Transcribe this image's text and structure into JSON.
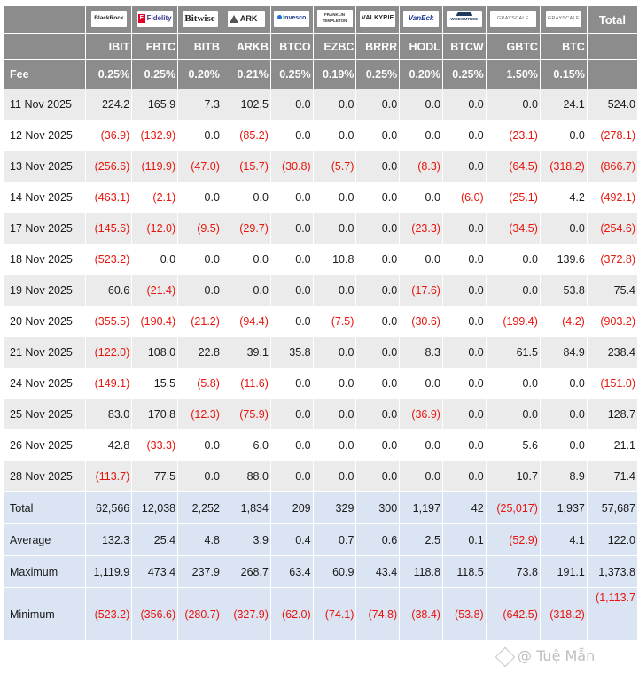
{
  "header": {
    "logos": [
      {
        "name": "blackrock-logo",
        "text": "BlackRock"
      },
      {
        "name": "fidelity-logo",
        "mark": "F",
        "text": "Fidelity"
      },
      {
        "name": "bitwise-logo",
        "text": "Bitwise"
      },
      {
        "name": "ark-logo",
        "text": "ARK"
      },
      {
        "name": "invesco-logo",
        "text": "Invesco"
      },
      {
        "name": "franklin-templeton-logo",
        "text": "FRANKLIN TEMPLETON"
      },
      {
        "name": "valkyrie-logo",
        "text": "VALKYRIE"
      },
      {
        "name": "vaneck-logo",
        "text": "VanEck"
      },
      {
        "name": "wisdomtree-logo",
        "text": "WISDOMTREE"
      },
      {
        "name": "grayscale-logo-gbtc",
        "text": "GRAYSCALE"
      },
      {
        "name": "grayscale-logo-btc",
        "text": "GRAYSCALE"
      }
    ],
    "total_label": "Total",
    "tickers": [
      "IBIT",
      "FBTC",
      "BITB",
      "ARKB",
      "BTCO",
      "EZBC",
      "BRRR",
      "HODL",
      "BTCW",
      "GBTC",
      "BTC"
    ],
    "fee_label": "Fee",
    "fees": [
      "0.25%",
      "0.25%",
      "0.20%",
      "0.21%",
      "0.25%",
      "0.19%",
      "0.25%",
      "0.20%",
      "0.25%",
      "1.50%",
      "0.15%"
    ]
  },
  "rows": [
    {
      "date": "11 Nov 2025",
      "values": [
        "224.2",
        "165.9",
        "7.3",
        "102.5",
        "0.0",
        "0.0",
        "0.0",
        "0.0",
        "0.0",
        "0.0",
        "24.1"
      ],
      "total": "524.0"
    },
    {
      "date": "12 Nov 2025",
      "values": [
        "(36.9)",
        "(132.9)",
        "0.0",
        "(85.2)",
        "0.0",
        "0.0",
        "0.0",
        "0.0",
        "0.0",
        "(23.1)",
        "0.0"
      ],
      "total": "(278.1)"
    },
    {
      "date": "13 Nov 2025",
      "values": [
        "(256.6)",
        "(119.9)",
        "(47.0)",
        "(15.7)",
        "(30.8)",
        "(5.7)",
        "0.0",
        "(8.3)",
        "0.0",
        "(64.5)",
        "(318.2)"
      ],
      "total": "(866.7)"
    },
    {
      "date": "14 Nov 2025",
      "values": [
        "(463.1)",
        "(2.1)",
        "0.0",
        "0.0",
        "0.0",
        "0.0",
        "0.0",
        "0.0",
        "(6.0)",
        "(25.1)",
        "4.2"
      ],
      "total": "(492.1)"
    },
    {
      "date": "17 Nov 2025",
      "values": [
        "(145.6)",
        "(12.0)",
        "(9.5)",
        "(29.7)",
        "0.0",
        "0.0",
        "0.0",
        "(23.3)",
        "0.0",
        "(34.5)",
        "0.0"
      ],
      "total": "(254.6)"
    },
    {
      "date": "18 Nov 2025",
      "values": [
        "(523.2)",
        "0.0",
        "0.0",
        "0.0",
        "0.0",
        "10.8",
        "0.0",
        "0.0",
        "0.0",
        "0.0",
        "139.6"
      ],
      "total": "(372.8)"
    },
    {
      "date": "19 Nov 2025",
      "values": [
        "60.6",
        "(21.4)",
        "0.0",
        "0.0",
        "0.0",
        "0.0",
        "0.0",
        "(17.6)",
        "0.0",
        "0.0",
        "53.8"
      ],
      "total": "75.4"
    },
    {
      "date": "20 Nov 2025",
      "values": [
        "(355.5)",
        "(190.4)",
        "(21.2)",
        "(94.4)",
        "0.0",
        "(7.5)",
        "0.0",
        "(30.6)",
        "0.0",
        "(199.4)",
        "(4.2)"
      ],
      "total": "(903.2)"
    },
    {
      "date": "21 Nov 2025",
      "values": [
        "(122.0)",
        "108.0",
        "22.8",
        "39.1",
        "35.8",
        "0.0",
        "0.0",
        "8.3",
        "0.0",
        "61.5",
        "84.9"
      ],
      "total": "238.4"
    },
    {
      "date": "24 Nov 2025",
      "values": [
        "(149.1)",
        "15.5",
        "(5.8)",
        "(11.6)",
        "0.0",
        "0.0",
        "0.0",
        "0.0",
        "0.0",
        "0.0",
        "0.0"
      ],
      "total": "(151.0)"
    },
    {
      "date": "25 Nov 2025",
      "values": [
        "83.0",
        "170.8",
        "(12.3)",
        "(75.9)",
        "0.0",
        "0.0",
        "0.0",
        "(36.9)",
        "0.0",
        "0.0",
        "0.0"
      ],
      "total": "128.7"
    },
    {
      "date": "26 Nov 2025",
      "values": [
        "42.8",
        "(33.3)",
        "0.0",
        "6.0",
        "0.0",
        "0.0",
        "0.0",
        "0.0",
        "0.0",
        "5.6",
        "0.0"
      ],
      "total": "21.1"
    },
    {
      "date": "28 Nov 2025",
      "values": [
        "(113.7)",
        "77.5",
        "0.0",
        "88.0",
        "0.0",
        "0.0",
        "0.0",
        "0.0",
        "0.0",
        "10.7",
        "8.9"
      ],
      "total": "71.4"
    }
  ],
  "summary": [
    {
      "label": "Total",
      "values": [
        "62,566",
        "12,038",
        "2,252",
        "1,834",
        "209",
        "329",
        "300",
        "1,197",
        "42",
        "(25,017)",
        "1,937"
      ],
      "total": "57,687"
    },
    {
      "label": "Average",
      "values": [
        "132.3",
        "25.4",
        "4.8",
        "3.9",
        "0.4",
        "0.7",
        "0.6",
        "2.5",
        "0.1",
        "(52.9)",
        "4.1"
      ],
      "total": "122.0"
    },
    {
      "label": "Maximum",
      "values": [
        "1,119.9",
        "473.4",
        "237.9",
        "268.7",
        "63.4",
        "60.9",
        "43.4",
        "118.8",
        "118.5",
        "73.8",
        "191.1"
      ],
      "total": "1,373.8"
    },
    {
      "label": "Minimum",
      "values": [
        "(523.2)",
        "(356.6)",
        "(280.7)",
        "(327.9)",
        "(62.0)",
        "(74.1)",
        "(74.8)",
        "(38.4)",
        "(53.8)",
        "(642.5)",
        "(318.2)"
      ],
      "total": "(1,113.7"
    }
  ],
  "colors": {
    "header_bg": "#8c8c8c",
    "negative": "#e8140c",
    "summary_bg": "#dbe4f3",
    "stripe": "#ebebeb"
  },
  "watermark": "@ Tuệ Mẫn"
}
